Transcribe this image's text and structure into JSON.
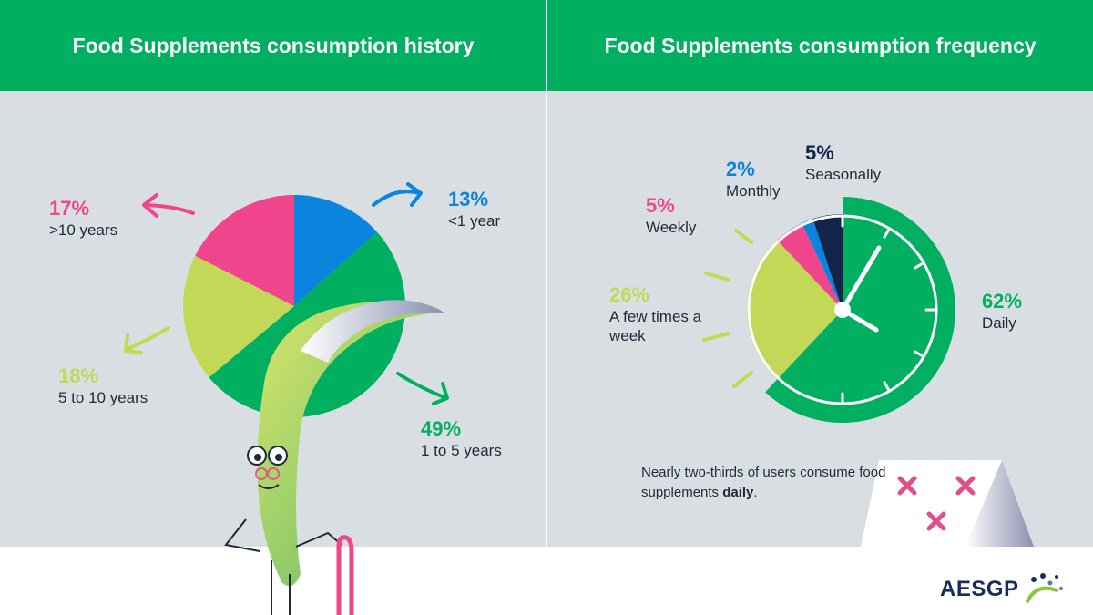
{
  "left_title": "Food Supplements consumption history",
  "right_title": "Food Supplements consumption frequency",
  "note": {
    "text_before": "Nearly two-thirds of users consume food supplements ",
    "emphasis": "daily",
    "text_after": "."
  },
  "logo_text": "AESGP",
  "colors": {
    "green": "#00b060",
    "blue": "#0a84dc",
    "pink": "#f0448c",
    "lime": "#c3d857",
    "navy": "#13244a",
    "background": "#d9dee2"
  },
  "chart_data": [
    {
      "type": "pie",
      "title": "Food Supplements consumption history",
      "slices": [
        {
          "label": "<1 year",
          "value": 13,
          "pct": "13%",
          "color": "#0a84dc"
        },
        {
          "label": "1 to 5 years",
          "value": 49,
          "pct": "49%",
          "color": "#00b060"
        },
        {
          "label": "5 to 10 years",
          "value": 18,
          "pct": "18%",
          "color": "#c3d857"
        },
        {
          "label": ">10 years",
          "value": 17,
          "pct": "17%",
          "color": "#f0448c"
        }
      ]
    },
    {
      "type": "pie",
      "title": "Food Supplements consumption frequency",
      "slices": [
        {
          "label": "Daily",
          "value": 62,
          "pct": "62%",
          "color": "#00b060"
        },
        {
          "label": "A few times a week",
          "value": 26,
          "pct": "26%",
          "color": "#c3d857"
        },
        {
          "label": "Weekly",
          "value": 5,
          "pct": "5%",
          "color": "#f0448c"
        },
        {
          "label": "Monthly",
          "value": 2,
          "pct": "2%",
          "color": "#0a84dc"
        },
        {
          "label": "Seasonally",
          "value": 5,
          "pct": "5%",
          "color": "#13244a"
        }
      ]
    }
  ]
}
